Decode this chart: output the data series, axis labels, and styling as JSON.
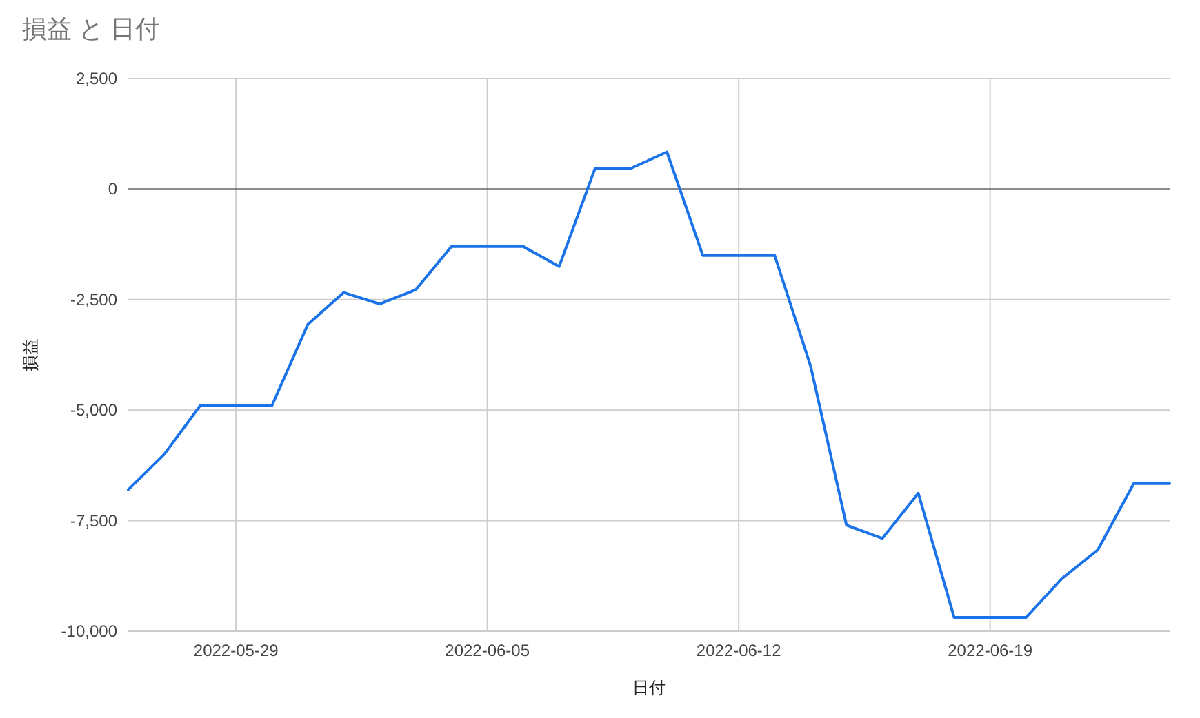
{
  "chart_data": {
    "type": "line",
    "title": "損益 と 日付",
    "xlabel": "日付",
    "ylabel": "損益",
    "x": [
      "2022-05-26",
      "2022-05-27",
      "2022-05-28",
      "2022-05-29",
      "2022-05-30",
      "2022-05-31",
      "2022-06-01",
      "2022-06-02",
      "2022-06-03",
      "2022-06-04",
      "2022-06-05",
      "2022-06-06",
      "2022-06-07",
      "2022-06-08",
      "2022-06-09",
      "2022-06-10",
      "2022-06-11",
      "2022-06-12",
      "2022-06-13",
      "2022-06-14",
      "2022-06-15",
      "2022-06-16",
      "2022-06-17",
      "2022-06-18",
      "2022-06-19",
      "2022-06-20",
      "2022-06-21",
      "2022-06-22",
      "2022-06-23",
      "2022-06-24"
    ],
    "series": [
      {
        "color": "#1a73e8",
        "values": [
          -6800,
          -6000,
          -4900,
          -4900,
          -4900,
          -3060,
          -2340,
          -2600,
          -2280,
          -1300,
          -1300,
          -1300,
          -1750,
          470,
          470,
          840,
          -1500,
          -1500,
          -1500,
          -4000,
          -7600,
          -7900,
          -6880,
          -9690,
          -9690,
          -9690,
          -8810,
          -8160,
          -6660,
          -6660
        ]
      }
    ],
    "xlim": [
      "2022-05-26",
      "2022-06-24"
    ],
    "xticks": [
      "2022-05-29",
      "2022-06-05",
      "2022-06-12",
      "2022-06-19"
    ],
    "ylim": [
      -10000,
      2500
    ],
    "yticks": [
      {
        "value": -10000,
        "label": "-10,000"
      },
      {
        "value": -7500,
        "label": "-7,500"
      },
      {
        "value": -5000,
        "label": "-5,000"
      },
      {
        "value": -2500,
        "label": "-2,500"
      },
      {
        "value": 0,
        "label": "0"
      },
      {
        "value": 2500,
        "label": "2,500"
      }
    ],
    "ref_lines": [
      {
        "axis": "y",
        "value": 0,
        "color": "#333333"
      }
    ],
    "grid": true,
    "marker": "none",
    "line_style": "solid"
  }
}
